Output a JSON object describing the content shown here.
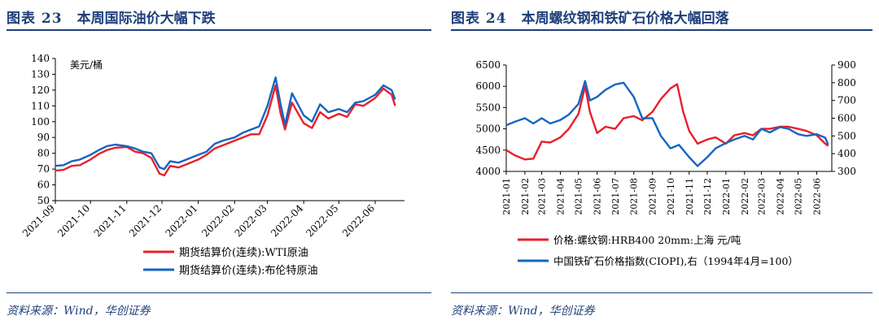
{
  "left": {
    "figure_label": "图表 23",
    "title": "本周国际油价大幅下跌",
    "source": "资料来源：Wind，华创证券"
  },
  "right": {
    "figure_label": "图表 24",
    "title": "本周螺纹钢和铁矿石价格大幅回落",
    "source": "资料来源：Wind，华创证券"
  },
  "colors": {
    "red": "#e8202a",
    "blue": "#1565c0",
    "header": "#1f3f7a"
  },
  "chart_data": [
    {
      "type": "line",
      "unit_label": "美元/桶",
      "x_ticks": [
        "2021-09",
        "2021-10",
        "2021-11",
        "2021-12",
        "2022-01",
        "2022-02",
        "2022-03",
        "2022-04",
        "2022-05",
        "2022-06"
      ],
      "ylim": [
        50,
        140
      ],
      "y_ticks": [
        50,
        60,
        70,
        80,
        90,
        100,
        110,
        120,
        130,
        140
      ],
      "legend_position": "bottom",
      "series": [
        {
          "name": "期货结算价(连续):WTI原油",
          "color": "#e8202a",
          "points": [
            [
              "2021-09-01",
              69
            ],
            [
              "2021-09-08",
              69.5
            ],
            [
              "2021-09-15",
              72
            ],
            [
              "2021-09-22",
              72.5
            ],
            [
              "2021-10-01",
              76
            ],
            [
              "2021-10-08",
              79.5
            ],
            [
              "2021-10-15",
              82
            ],
            [
              "2021-10-22",
              83.5
            ],
            [
              "2021-11-01",
              84
            ],
            [
              "2021-11-08",
              81
            ],
            [
              "2021-11-15",
              80
            ],
            [
              "2021-11-22",
              77
            ],
            [
              "2021-11-29",
              67
            ],
            [
              "2021-12-03",
              66
            ],
            [
              "2021-12-08",
              72
            ],
            [
              "2021-12-15",
              71
            ],
            [
              "2021-12-22",
              73
            ],
            [
              "2022-01-01",
              76
            ],
            [
              "2022-01-08",
              79
            ],
            [
              "2022-01-15",
              83
            ],
            [
              "2022-01-22",
              85
            ],
            [
              "2022-02-01",
              88
            ],
            [
              "2022-02-08",
              90
            ],
            [
              "2022-02-15",
              92
            ],
            [
              "2022-02-22",
              92
            ],
            [
              "2022-03-01",
              104
            ],
            [
              "2022-03-08",
              123
            ],
            [
              "2022-03-12",
              106
            ],
            [
              "2022-03-16",
              95
            ],
            [
              "2022-03-22",
              112
            ],
            [
              "2022-04-01",
              99
            ],
            [
              "2022-04-08",
              96
            ],
            [
              "2022-04-15",
              106
            ],
            [
              "2022-04-22",
              102
            ],
            [
              "2022-05-01",
              105
            ],
            [
              "2022-05-08",
              103
            ],
            [
              "2022-05-15",
              111
            ],
            [
              "2022-05-22",
              110
            ],
            [
              "2022-06-01",
              115
            ],
            [
              "2022-06-08",
              121
            ],
            [
              "2022-06-15",
              117
            ],
            [
              "2022-06-18",
              110
            ]
          ]
        },
        {
          "name": "期货结算价(连续):布伦特原油",
          "color": "#1565c0",
          "points": [
            [
              "2021-09-01",
              72
            ],
            [
              "2021-09-08",
              72.5
            ],
            [
              "2021-09-15",
              75
            ],
            [
              "2021-09-22",
              76
            ],
            [
              "2021-10-01",
              79
            ],
            [
              "2021-10-08",
              82
            ],
            [
              "2021-10-15",
              84.5
            ],
            [
              "2021-10-22",
              85.5
            ],
            [
              "2021-11-01",
              84.5
            ],
            [
              "2021-11-08",
              83
            ],
            [
              "2021-11-15",
              81
            ],
            [
              "2021-11-22",
              80
            ],
            [
              "2021-11-29",
              71
            ],
            [
              "2021-12-03",
              70
            ],
            [
              "2021-12-08",
              75
            ],
            [
              "2021-12-15",
              74
            ],
            [
              "2021-12-22",
              76
            ],
            [
              "2022-01-01",
              79
            ],
            [
              "2022-01-08",
              81
            ],
            [
              "2022-01-15",
              86
            ],
            [
              "2022-01-22",
              88
            ],
            [
              "2022-02-01",
              90
            ],
            [
              "2022-02-08",
              93
            ],
            [
              "2022-02-15",
              95
            ],
            [
              "2022-02-22",
              97
            ],
            [
              "2022-03-01",
              110
            ],
            [
              "2022-03-08",
              128
            ],
            [
              "2022-03-12",
              112
            ],
            [
              "2022-03-16",
              98
            ],
            [
              "2022-03-22",
              118
            ],
            [
              "2022-04-01",
              104
            ],
            [
              "2022-04-08",
              100
            ],
            [
              "2022-04-15",
              111
            ],
            [
              "2022-04-22",
              106
            ],
            [
              "2022-05-01",
              108
            ],
            [
              "2022-05-08",
              106
            ],
            [
              "2022-05-15",
              112
            ],
            [
              "2022-05-22",
              113
            ],
            [
              "2022-06-01",
              117
            ],
            [
              "2022-06-08",
              123
            ],
            [
              "2022-06-15",
              120
            ],
            [
              "2022-06-18",
              114
            ]
          ]
        }
      ]
    },
    {
      "type": "line",
      "x_ticks": [
        "2021-01",
        "2021-02",
        "2021-03",
        "2021-04",
        "2021-05",
        "2021-06",
        "2021-07",
        "2021-08",
        "2021-09",
        "2021-10",
        "2021-11",
        "2021-12",
        "2022-01",
        "2022-02",
        "2022-03",
        "2022-04",
        "2022-05",
        "2022-06"
      ],
      "ylim_left": [
        4000,
        6500
      ],
      "y_ticks_left": [
        4000,
        4500,
        5000,
        5500,
        6000,
        6500
      ],
      "ylim_right": [
        300,
        900
      ],
      "y_ticks_right": [
        300,
        400,
        500,
        600,
        700,
        800,
        900
      ],
      "legend_position": "bottom",
      "series": [
        {
          "name": "价格:螺纹钢:HRB400 20mm:上海 元/吨",
          "axis": "left",
          "color": "#e8202a",
          "points": [
            [
              "2021-01-01",
              4500
            ],
            [
              "2021-01-15",
              4380
            ],
            [
              "2021-02-01",
              4280
            ],
            [
              "2021-02-15",
              4300
            ],
            [
              "2021-03-01",
              4700
            ],
            [
              "2021-03-15",
              4680
            ],
            [
              "2021-04-01",
              4800
            ],
            [
              "2021-04-15",
              5000
            ],
            [
              "2021-05-01",
              5350
            ],
            [
              "2021-05-12",
              6000
            ],
            [
              "2021-05-20",
              5400
            ],
            [
              "2021-06-01",
              4900
            ],
            [
              "2021-06-15",
              5050
            ],
            [
              "2021-07-01",
              5000
            ],
            [
              "2021-07-15",
              5250
            ],
            [
              "2021-08-01",
              5300
            ],
            [
              "2021-08-15",
              5200
            ],
            [
              "2021-09-01",
              5400
            ],
            [
              "2021-09-15",
              5700
            ],
            [
              "2021-10-01",
              5950
            ],
            [
              "2021-10-12",
              6050
            ],
            [
              "2021-10-22",
              5400
            ],
            [
              "2021-11-01",
              4950
            ],
            [
              "2021-11-15",
              4650
            ],
            [
              "2021-12-01",
              4750
            ],
            [
              "2021-12-15",
              4800
            ],
            [
              "2022-01-01",
              4650
            ],
            [
              "2022-01-15",
              4850
            ],
            [
              "2022-02-01",
              4900
            ],
            [
              "2022-02-15",
              4850
            ],
            [
              "2022-03-01",
              5000
            ],
            [
              "2022-03-15",
              5000
            ],
            [
              "2022-04-01",
              5050
            ],
            [
              "2022-04-15",
              5050
            ],
            [
              "2022-05-01",
              5000
            ],
            [
              "2022-05-15",
              4950
            ],
            [
              "2022-06-01",
              4850
            ],
            [
              "2022-06-15",
              4650
            ],
            [
              "2022-06-20",
              4600
            ]
          ]
        },
        {
          "name": "中国铁矿石价格指数(CIOPI),右（1994年4月=100）",
          "axis": "right",
          "color": "#1565c0",
          "points": [
            [
              "2021-01-01",
              560
            ],
            [
              "2021-01-15",
              580
            ],
            [
              "2021-02-01",
              600
            ],
            [
              "2021-02-15",
              570
            ],
            [
              "2021-03-01",
              600
            ],
            [
              "2021-03-15",
              570
            ],
            [
              "2021-04-01",
              590
            ],
            [
              "2021-04-15",
              620
            ],
            [
              "2021-05-01",
              680
            ],
            [
              "2021-05-12",
              810
            ],
            [
              "2021-05-20",
              700
            ],
            [
              "2021-06-01",
              720
            ],
            [
              "2021-06-15",
              760
            ],
            [
              "2021-07-01",
              790
            ],
            [
              "2021-07-15",
              800
            ],
            [
              "2021-08-01",
              720
            ],
            [
              "2021-08-15",
              600
            ],
            [
              "2021-09-01",
              600
            ],
            [
              "2021-09-15",
              500
            ],
            [
              "2021-10-01",
              430
            ],
            [
              "2021-10-15",
              450
            ],
            [
              "2021-11-01",
              380
            ],
            [
              "2021-11-15",
              330
            ],
            [
              "2021-12-01",
              380
            ],
            [
              "2021-12-15",
              430
            ],
            [
              "2022-01-01",
              460
            ],
            [
              "2022-01-15",
              480
            ],
            [
              "2022-02-01",
              500
            ],
            [
              "2022-02-15",
              480
            ],
            [
              "2022-03-01",
              540
            ],
            [
              "2022-03-15",
              520
            ],
            [
              "2022-04-01",
              550
            ],
            [
              "2022-04-15",
              540
            ],
            [
              "2022-05-01",
              510
            ],
            [
              "2022-05-15",
              500
            ],
            [
              "2022-06-01",
              510
            ],
            [
              "2022-06-15",
              490
            ],
            [
              "2022-06-20",
              450
            ]
          ]
        }
      ]
    }
  ]
}
